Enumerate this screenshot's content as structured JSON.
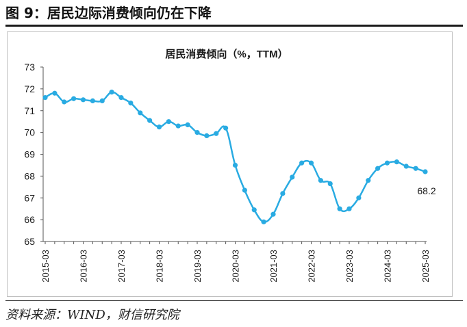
{
  "figure_title": "图 9：居民边际消费倾向仍在下降",
  "source": "资料来源：WIND，财信研究院",
  "colors": {
    "line": "#29ABE2",
    "axis": "#555555",
    "text": "#1a1a1a"
  },
  "chart_data": {
    "type": "line",
    "title": "居民消费倾向（%，TTM）",
    "xlabel": "",
    "ylabel": "",
    "ylim": [
      65,
      73
    ],
    "yticks": [
      65,
      66,
      67,
      68,
      69,
      70,
      71,
      72,
      73
    ],
    "xtick_labels": [
      "2015-03",
      "2016-03",
      "2017-03",
      "2018-03",
      "2019-03",
      "2020-03",
      "2021-03",
      "2022-03",
      "2023-03",
      "2024-03",
      "2025-03"
    ],
    "grid": false,
    "legend": "none",
    "end_label": "68.2",
    "x": [
      "2015-03",
      "2015-06",
      "2015-09",
      "2015-12",
      "2016-03",
      "2016-06",
      "2016-09",
      "2016-12",
      "2017-03",
      "2017-06",
      "2017-09",
      "2017-12",
      "2018-03",
      "2018-06",
      "2018-09",
      "2018-12",
      "2019-03",
      "2019-06",
      "2019-09",
      "2019-12",
      "2020-03",
      "2020-06",
      "2020-09",
      "2020-12",
      "2021-03",
      "2021-06",
      "2021-09",
      "2021-12",
      "2022-03",
      "2022-06",
      "2022-09",
      "2022-12",
      "2023-03",
      "2023-06",
      "2023-09",
      "2023-12",
      "2024-03",
      "2024-06",
      "2024-09",
      "2024-12",
      "2025-03"
    ],
    "series": [
      {
        "values": [
          71.6,
          71.8,
          71.4,
          71.55,
          71.5,
          71.45,
          71.45,
          71.85,
          71.6,
          71.35,
          70.9,
          70.55,
          70.25,
          70.5,
          70.3,
          70.35,
          70.0,
          69.85,
          69.95,
          70.2,
          68.5,
          67.35,
          66.45,
          65.9,
          66.25,
          67.2,
          67.95,
          68.6,
          68.6,
          67.8,
          67.65,
          66.5,
          66.5,
          67.0,
          67.8,
          68.35,
          68.6,
          68.65,
          68.45,
          68.35,
          68.2
        ]
      }
    ]
  }
}
